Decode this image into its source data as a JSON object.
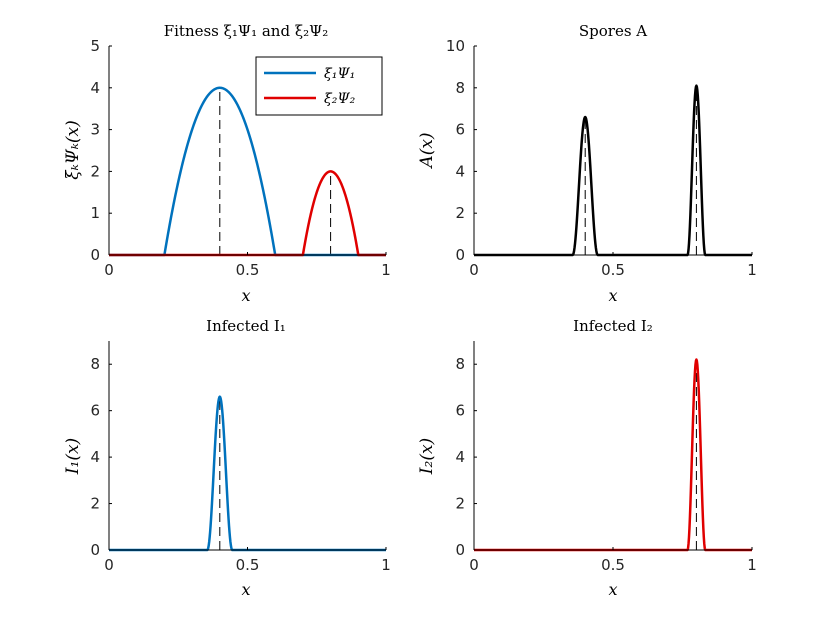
{
  "chart_data": [
    {
      "id": "fitness",
      "type": "line",
      "title": "Fitness ξ₁Ψ₁ and ξ₂Ψ₂",
      "xlabel": "x",
      "ylabel": "ξₖΨₖ(x)",
      "xlim": [
        0,
        1
      ],
      "ylim": [
        0,
        5
      ],
      "xticks": [
        0,
        0.5,
        1
      ],
      "xtick_labels": [
        "0",
        "0.5",
        "1"
      ],
      "yticks": [
        0,
        1,
        2,
        3,
        4,
        5
      ],
      "ytick_labels": [
        "0",
        "1",
        "2",
        "3",
        "4",
        "5"
      ],
      "legend": "top-right",
      "series": [
        {
          "name": "ξ₁Ψ₁",
          "color": "#0072BD",
          "shape": "parabola",
          "center": 0.4,
          "halfwidth": 0.2,
          "peak": 4
        },
        {
          "name": "ξ₂Ψ₂",
          "color": "#E00000",
          "shape": "parabola",
          "center": 0.8,
          "halfwidth": 0.1,
          "peak": 2
        }
      ],
      "vlines": [
        {
          "x": 0.4,
          "ymax": 4
        },
        {
          "x": 0.8,
          "ymax": 2
        }
      ]
    },
    {
      "id": "spores",
      "type": "line",
      "title": "Spores A",
      "xlabel": "x",
      "ylabel": "A(x)",
      "xlim": [
        0,
        1
      ],
      "ylim": [
        0,
        10
      ],
      "xticks": [
        0,
        0.5,
        1
      ],
      "xtick_labels": [
        "0",
        "0.5",
        "1"
      ],
      "yticks": [
        0,
        2,
        4,
        6,
        8,
        10
      ],
      "ytick_labels": [
        "0",
        "2",
        "4",
        "6",
        "8",
        "10"
      ],
      "series": [
        {
          "name": "A",
          "color": "#000000",
          "shape": "peaks",
          "peaks": [
            {
              "center": 0.4,
              "height": 6.6,
              "halfwidth": 0.045
            },
            {
              "center": 0.8,
              "height": 8.1,
              "halfwidth": 0.032
            }
          ]
        }
      ],
      "vlines": [
        {
          "x": 0.4,
          "ymax": 6.6
        },
        {
          "x": 0.8,
          "ymax": 8.1
        }
      ]
    },
    {
      "id": "infected1",
      "type": "line",
      "title": "Infected I₁",
      "xlabel": "x",
      "ylabel": "I₁(x)",
      "xlim": [
        0,
        1
      ],
      "ylim": [
        0,
        9
      ],
      "xticks": [
        0,
        0.5,
        1
      ],
      "xtick_labels": [
        "0",
        "0.5",
        "1"
      ],
      "yticks": [
        0,
        2,
        4,
        6,
        8
      ],
      "ytick_labels": [
        "0",
        "2",
        "4",
        "6",
        "8"
      ],
      "series": [
        {
          "name": "I₁",
          "color": "#0072BD",
          "shape": "peaks",
          "peaks": [
            {
              "center": 0.4,
              "height": 6.6,
              "halfwidth": 0.045
            }
          ]
        }
      ],
      "vlines": [
        {
          "x": 0.4,
          "ymax": 6.6
        }
      ]
    },
    {
      "id": "infected2",
      "type": "line",
      "title": "Infected I₂",
      "xlabel": "x",
      "ylabel": "I₂(x)",
      "xlim": [
        0,
        1
      ],
      "ylim": [
        0,
        9
      ],
      "xticks": [
        0,
        0.5,
        1
      ],
      "xtick_labels": [
        "0",
        "0.5",
        "1"
      ],
      "yticks": [
        0,
        2,
        4,
        6,
        8
      ],
      "ytick_labels": [
        "0",
        "2",
        "4",
        "6",
        "8"
      ],
      "series": [
        {
          "name": "I₂",
          "color": "#E00000",
          "shape": "peaks",
          "peaks": [
            {
              "center": 0.8,
              "height": 8.2,
              "halfwidth": 0.032
            }
          ]
        }
      ],
      "vlines": [
        {
          "x": 0.8,
          "ymax": 8.2
        }
      ]
    }
  ]
}
